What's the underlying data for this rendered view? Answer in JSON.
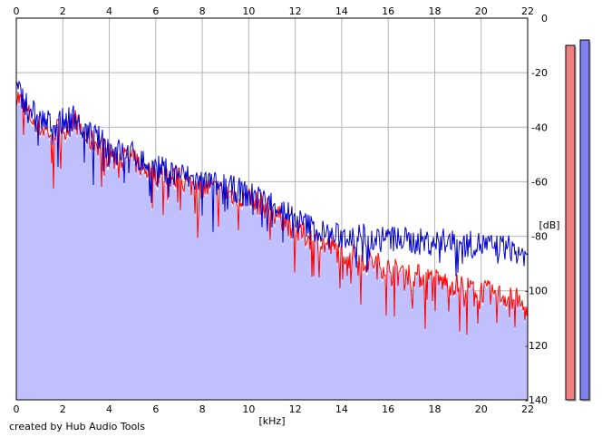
{
  "colors": {
    "background": "#ffffff",
    "grid": "#b4b4b4",
    "plot_border": "#000000",
    "fill_area": "#c0c0ff",
    "channel_left": "#ff0000",
    "channel_right": "#0000cc",
    "meter_left": "#f08080",
    "meter_right": "#8080f0"
  },
  "footer": {
    "credit": "created by Hub Audio Tools"
  },
  "chart_data": {
    "type": "line",
    "title": "",
    "xlabel": "[kHz]",
    "ylabel": "[dB]",
    "xlim": [
      0,
      22
    ],
    "ylim": [
      -140,
      0
    ],
    "x_ticks": [
      "0",
      "2",
      "4",
      "6",
      "8",
      "10",
      "12",
      "14",
      "16",
      "18",
      "20",
      "22"
    ],
    "y_ticks_right": [
      "0",
      "-20",
      "-40",
      "-60",
      "-80",
      "-100",
      "-120",
      "-140"
    ],
    "grid": true,
    "x": [
      0,
      0.5,
      1,
      1.5,
      2,
      2.5,
      3,
      3.5,
      4,
      4.5,
      5,
      5.5,
      6,
      6.5,
      7,
      7.5,
      8,
      8.5,
      9,
      9.5,
      10,
      10.5,
      11,
      11.5,
      12,
      12.5,
      13,
      13.5,
      14,
      14.5,
      15,
      15.5,
      16,
      16.5,
      17,
      17.5,
      18,
      18.5,
      19,
      19.5,
      20,
      20.5,
      21,
      21.5,
      22
    ],
    "series": [
      {
        "values": [
          -28,
          -35,
          -40,
          -42,
          -40,
          -37,
          -44,
          -46,
          -50,
          -51,
          -52,
          -55,
          -57,
          -58,
          -59,
          -61,
          -62,
          -63,
          -64,
          -65,
          -67,
          -68,
          -71,
          -74,
          -78,
          -80,
          -82,
          -84,
          -86,
          -87,
          -89,
          -90,
          -92,
          -93,
          -94,
          -95,
          -96,
          -97,
          -98,
          -99,
          -100,
          -101,
          -102,
          -103,
          -108
        ]
      },
      {
        "values": [
          -26,
          -32,
          -37,
          -39,
          -38,
          -36,
          -42,
          -44,
          -48,
          -49,
          -50,
          -53,
          -55,
          -56,
          -57,
          -59,
          -60,
          -61,
          -62,
          -63,
          -65,
          -66,
          -68,
          -70,
          -74,
          -76,
          -78,
          -80,
          -80,
          -80,
          -80,
          -81,
          -81,
          -81,
          -82,
          -82,
          -82,
          -82,
          -83,
          -83,
          -83,
          -84,
          -84,
          -85,
          -88
        ]
      }
    ],
    "meters": [
      {
        "top_db": -10
      },
      {
        "top_db": -8
      }
    ]
  }
}
